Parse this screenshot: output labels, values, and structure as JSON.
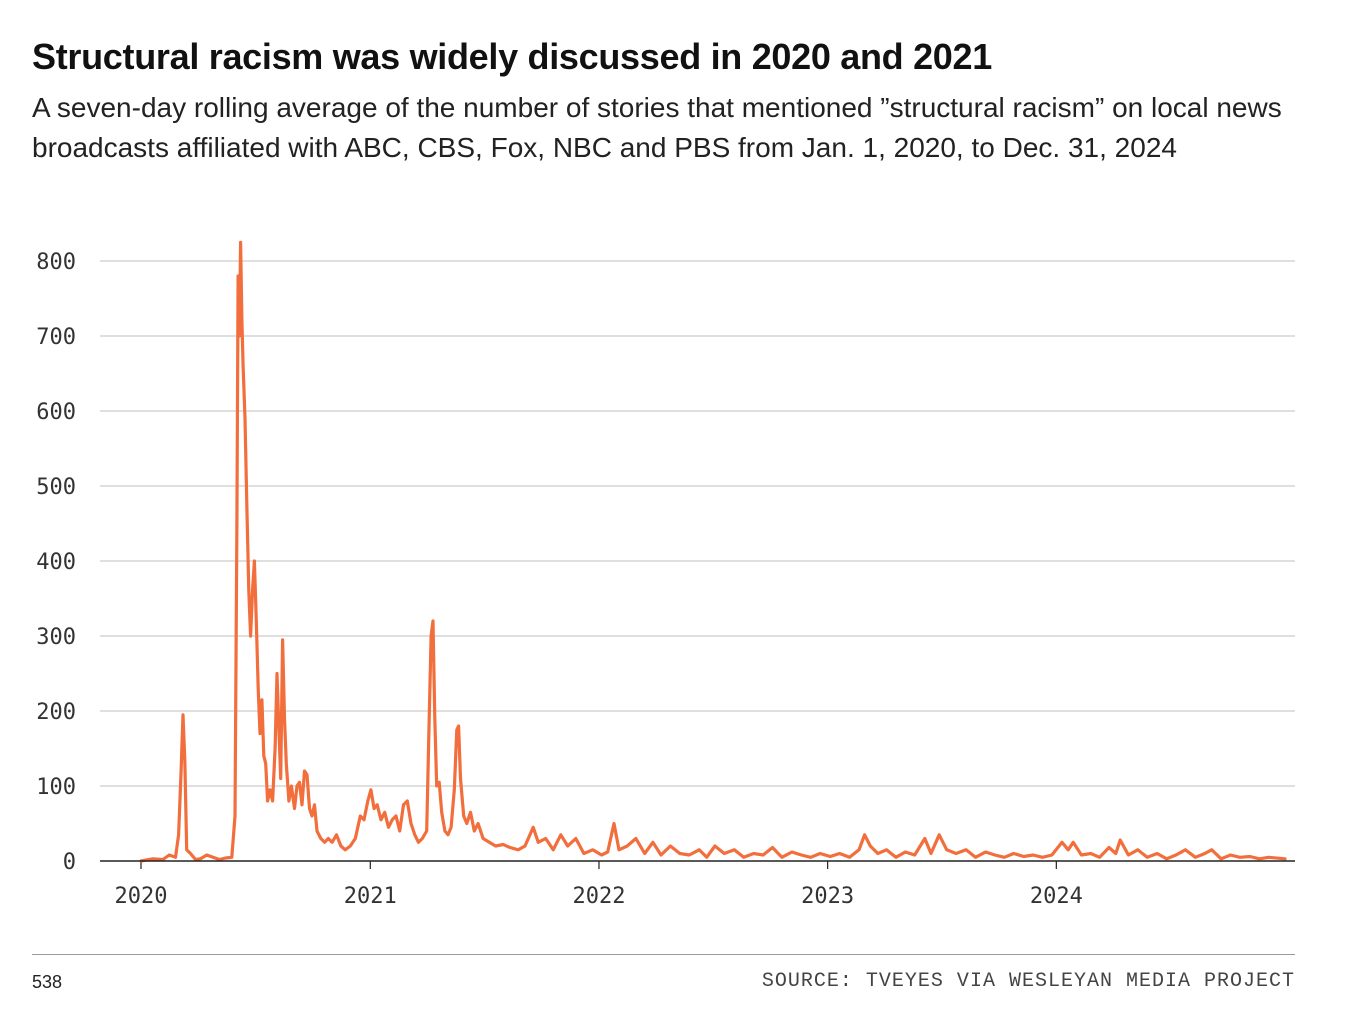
{
  "title": "Structural racism was widely discussed in 2020 and 2021",
  "subtitle": "A seven-day rolling average of the number of stories that mentioned ”structural racism” on local news broadcasts affiliated with ABC, CBS, Fox, NBC and PBS from Jan. 1, 2020, to Dec. 31, 2024",
  "footer": {
    "brand": "538",
    "source": "SOURCE: TVEYES VIA WESLEYAN MEDIA PROJECT"
  },
  "colors": {
    "line": "#f26e3c",
    "grid": "#cccccc",
    "axis": "#222222"
  },
  "chart_data": {
    "type": "line",
    "x_label": "",
    "y_label": "",
    "xlim": [
      "2020-01-01",
      "2024-12-31"
    ],
    "ylim": [
      0,
      800
    ],
    "y_ticks": [
      0,
      100,
      200,
      300,
      400,
      500,
      600,
      700,
      800
    ],
    "x_ticks": [
      "2020",
      "2021",
      "2022",
      "2023",
      "2024"
    ],
    "grid": true,
    "legend": "none",
    "series": [
      {
        "values": [
          [
            "2020-01-01",
            0
          ],
          [
            "2020-01-20",
            3
          ],
          [
            "2020-02-05",
            2
          ],
          [
            "2020-02-15",
            8
          ],
          [
            "2020-02-25",
            5
          ],
          [
            "2020-03-01",
            35
          ],
          [
            "2020-03-05",
            120
          ],
          [
            "2020-03-08",
            195
          ],
          [
            "2020-03-11",
            130
          ],
          [
            "2020-03-14",
            15
          ],
          [
            "2020-03-20",
            10
          ],
          [
            "2020-03-28",
            2
          ],
          [
            "2020-04-05",
            3
          ],
          [
            "2020-04-15",
            8
          ],
          [
            "2020-04-25",
            5
          ],
          [
            "2020-05-05",
            2
          ],
          [
            "2020-05-15",
            4
          ],
          [
            "2020-05-25",
            5
          ],
          [
            "2020-05-30",
            60
          ],
          [
            "2020-06-02",
            450
          ],
          [
            "2020-06-04",
            780
          ],
          [
            "2020-06-06",
            700
          ],
          [
            "2020-06-08",
            825
          ],
          [
            "2020-06-10",
            720
          ],
          [
            "2020-06-12",
            660
          ],
          [
            "2020-06-15",
            590
          ],
          [
            "2020-06-18",
            470
          ],
          [
            "2020-06-21",
            360
          ],
          [
            "2020-06-24",
            300
          ],
          [
            "2020-06-27",
            360
          ],
          [
            "2020-06-30",
            400
          ],
          [
            "2020-07-03",
            320
          ],
          [
            "2020-07-06",
            230
          ],
          [
            "2020-07-09",
            170
          ],
          [
            "2020-07-12",
            215
          ],
          [
            "2020-07-15",
            140
          ],
          [
            "2020-07-18",
            130
          ],
          [
            "2020-07-21",
            80
          ],
          [
            "2020-07-25",
            95
          ],
          [
            "2020-07-29",
            80
          ],
          [
            "2020-08-02",
            150
          ],
          [
            "2020-08-05",
            250
          ],
          [
            "2020-08-08",
            180
          ],
          [
            "2020-08-11",
            110
          ],
          [
            "2020-08-14",
            295
          ],
          [
            "2020-08-17",
            190
          ],
          [
            "2020-08-20",
            130
          ],
          [
            "2020-08-24",
            80
          ],
          [
            "2020-08-28",
            100
          ],
          [
            "2020-09-02",
            70
          ],
          [
            "2020-09-06",
            100
          ],
          [
            "2020-09-10",
            105
          ],
          [
            "2020-09-14",
            75
          ],
          [
            "2020-09-18",
            120
          ],
          [
            "2020-09-22",
            115
          ],
          [
            "2020-09-26",
            70
          ],
          [
            "2020-09-30",
            60
          ],
          [
            "2020-10-04",
            75
          ],
          [
            "2020-10-08",
            40
          ],
          [
            "2020-10-14",
            30
          ],
          [
            "2020-10-20",
            25
          ],
          [
            "2020-10-26",
            30
          ],
          [
            "2020-11-01",
            25
          ],
          [
            "2020-11-08",
            35
          ],
          [
            "2020-11-15",
            20
          ],
          [
            "2020-11-22",
            15
          ],
          [
            "2020-11-30",
            20
          ],
          [
            "2020-12-08",
            30
          ],
          [
            "2020-12-16",
            60
          ],
          [
            "2020-12-22",
            55
          ],
          [
            "2020-12-28",
            80
          ],
          [
            "2021-01-02",
            95
          ],
          [
            "2021-01-07",
            70
          ],
          [
            "2021-01-12",
            75
          ],
          [
            "2021-01-18",
            55
          ],
          [
            "2021-01-24",
            65
          ],
          [
            "2021-01-30",
            45
          ],
          [
            "2021-02-05",
            55
          ],
          [
            "2021-02-11",
            60
          ],
          [
            "2021-02-17",
            40
          ],
          [
            "2021-02-23",
            75
          ],
          [
            "2021-03-01",
            80
          ],
          [
            "2021-03-07",
            50
          ],
          [
            "2021-03-13",
            35
          ],
          [
            "2021-03-19",
            25
          ],
          [
            "2021-03-25",
            30
          ],
          [
            "2021-04-01",
            40
          ],
          [
            "2021-04-05",
            190
          ],
          [
            "2021-04-08",
            300
          ],
          [
            "2021-04-11",
            320
          ],
          [
            "2021-04-14",
            190
          ],
          [
            "2021-04-17",
            100
          ],
          [
            "2021-04-21",
            105
          ],
          [
            "2021-04-25",
            65
          ],
          [
            "2021-04-30",
            40
          ],
          [
            "2021-05-05",
            35
          ],
          [
            "2021-05-10",
            45
          ],
          [
            "2021-05-15",
            95
          ],
          [
            "2021-05-19",
            175
          ],
          [
            "2021-05-22",
            180
          ],
          [
            "2021-05-25",
            110
          ],
          [
            "2021-05-30",
            60
          ],
          [
            "2021-06-04",
            50
          ],
          [
            "2021-06-10",
            65
          ],
          [
            "2021-06-16",
            40
          ],
          [
            "2021-06-22",
            50
          ],
          [
            "2021-06-30",
            30
          ],
          [
            "2021-07-10",
            25
          ],
          [
            "2021-07-20",
            20
          ],
          [
            "2021-08-01",
            22
          ],
          [
            "2021-08-12",
            18
          ],
          [
            "2021-08-25",
            15
          ],
          [
            "2021-09-05",
            20
          ],
          [
            "2021-09-18",
            45
          ],
          [
            "2021-09-26",
            25
          ],
          [
            "2021-10-08",
            30
          ],
          [
            "2021-10-20",
            15
          ],
          [
            "2021-11-01",
            35
          ],
          [
            "2021-11-12",
            20
          ],
          [
            "2021-11-25",
            30
          ],
          [
            "2021-12-08",
            10
          ],
          [
            "2021-12-22",
            15
          ],
          [
            "2022-01-05",
            8
          ],
          [
            "2022-01-15",
            12
          ],
          [
            "2022-01-25",
            50
          ],
          [
            "2022-02-02",
            15
          ],
          [
            "2022-02-15",
            20
          ],
          [
            "2022-03-01",
            30
          ],
          [
            "2022-03-15",
            10
          ],
          [
            "2022-03-28",
            25
          ],
          [
            "2022-04-10",
            8
          ],
          [
            "2022-04-25",
            20
          ],
          [
            "2022-05-10",
            10
          ],
          [
            "2022-05-25",
            8
          ],
          [
            "2022-06-10",
            15
          ],
          [
            "2022-06-22",
            5
          ],
          [
            "2022-07-05",
            20
          ],
          [
            "2022-07-20",
            10
          ],
          [
            "2022-08-05",
            15
          ],
          [
            "2022-08-20",
            5
          ],
          [
            "2022-09-05",
            10
          ],
          [
            "2022-09-20",
            8
          ],
          [
            "2022-10-05",
            18
          ],
          [
            "2022-10-20",
            5
          ],
          [
            "2022-11-05",
            12
          ],
          [
            "2022-11-20",
            8
          ],
          [
            "2022-12-05",
            5
          ],
          [
            "2022-12-20",
            10
          ],
          [
            "2023-01-05",
            6
          ],
          [
            "2023-01-20",
            10
          ],
          [
            "2023-02-05",
            5
          ],
          [
            "2023-02-20",
            15
          ],
          [
            "2023-03-01",
            35
          ],
          [
            "2023-03-10",
            20
          ],
          [
            "2023-03-22",
            10
          ],
          [
            "2023-04-05",
            15
          ],
          [
            "2023-04-20",
            5
          ],
          [
            "2023-05-05",
            12
          ],
          [
            "2023-05-20",
            8
          ],
          [
            "2023-06-05",
            30
          ],
          [
            "2023-06-15",
            10
          ],
          [
            "2023-06-28",
            35
          ],
          [
            "2023-07-10",
            15
          ],
          [
            "2023-07-25",
            10
          ],
          [
            "2023-08-10",
            15
          ],
          [
            "2023-08-25",
            5
          ],
          [
            "2023-09-10",
            12
          ],
          [
            "2023-09-25",
            8
          ],
          [
            "2023-10-10",
            5
          ],
          [
            "2023-10-25",
            10
          ],
          [
            "2023-11-10",
            6
          ],
          [
            "2023-11-25",
            8
          ],
          [
            "2023-12-10",
            5
          ],
          [
            "2023-12-25",
            8
          ],
          [
            "2024-01-10",
            25
          ],
          [
            "2024-01-20",
            15
          ],
          [
            "2024-01-28",
            25
          ],
          [
            "2024-02-10",
            8
          ],
          [
            "2024-02-25",
            10
          ],
          [
            "2024-03-10",
            5
          ],
          [
            "2024-03-25",
            18
          ],
          [
            "2024-04-05",
            10
          ],
          [
            "2024-04-12",
            28
          ],
          [
            "2024-04-25",
            8
          ],
          [
            "2024-05-10",
            15
          ],
          [
            "2024-05-25",
            5
          ],
          [
            "2024-06-10",
            10
          ],
          [
            "2024-06-25",
            3
          ],
          [
            "2024-07-10",
            8
          ],
          [
            "2024-07-25",
            15
          ],
          [
            "2024-08-10",
            5
          ],
          [
            "2024-08-25",
            10
          ],
          [
            "2024-09-05",
            15
          ],
          [
            "2024-09-20",
            3
          ],
          [
            "2024-10-05",
            8
          ],
          [
            "2024-10-20",
            5
          ],
          [
            "2024-11-05",
            6
          ],
          [
            "2024-11-20",
            3
          ],
          [
            "2024-12-05",
            5
          ],
          [
            "2024-12-31",
            3
          ]
        ]
      }
    ]
  }
}
